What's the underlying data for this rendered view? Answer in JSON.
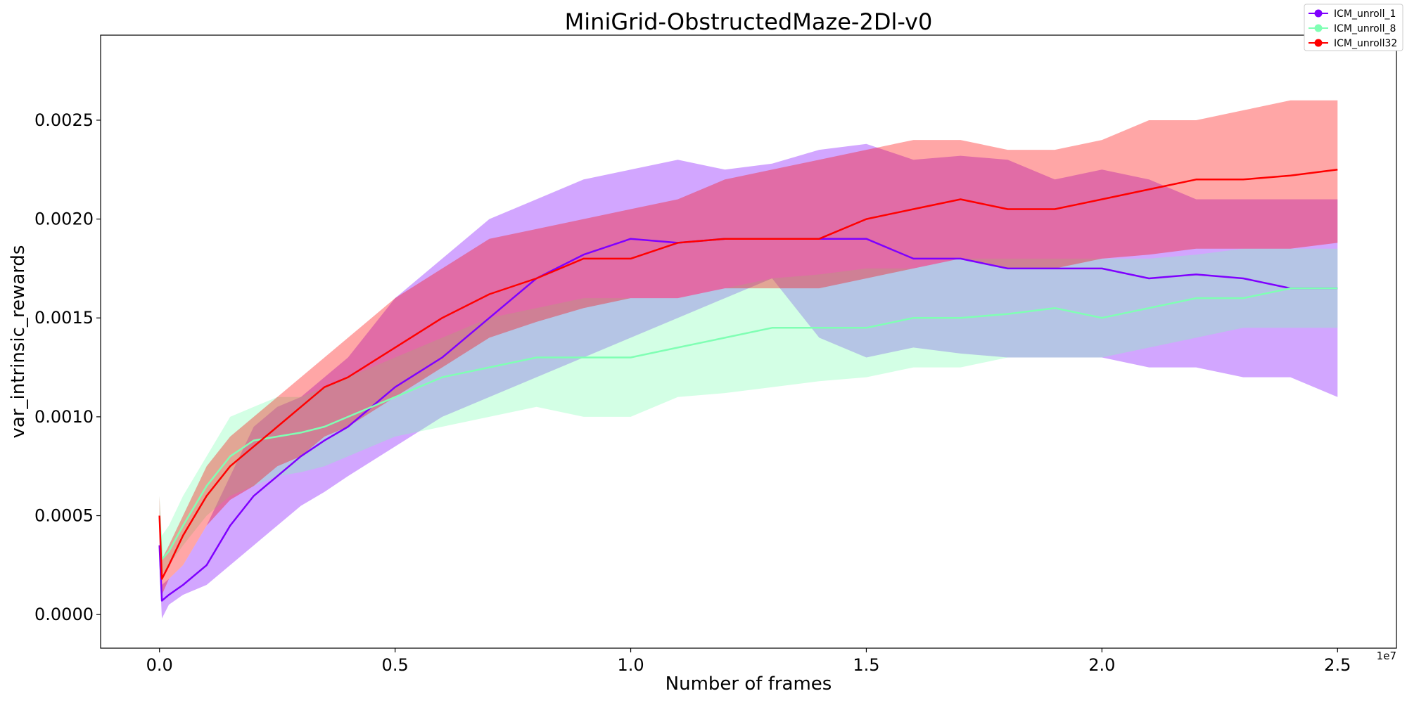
{
  "chart_data": {
    "type": "line",
    "title": "MiniGrid-ObstructedMaze-2Dl-v0",
    "xlabel": "Number of frames",
    "ylabel": "var_intrinsic_rewards",
    "x_scale_label": "1e7",
    "xlim": [
      -0.125,
      2.625
    ],
    "ylim": [
      -0.00017,
      0.00293
    ],
    "x_ticks": [
      0.0,
      0.5,
      1.0,
      1.5,
      2.0,
      2.5
    ],
    "x_tick_labels": [
      "0.0",
      "0.5",
      "1.0",
      "1.5",
      "2.0",
      "2.5"
    ],
    "y_ticks": [
      0.0,
      0.0005,
      0.001,
      0.0015,
      0.002,
      0.0025
    ],
    "y_tick_labels": [
      "0.0000",
      "0.0005",
      "0.0010",
      "0.0015",
      "0.0020",
      "0.0025"
    ],
    "grid": false,
    "legend_position": "top-right",
    "x": [
      0.0,
      0.005,
      0.02,
      0.05,
      0.1,
      0.15,
      0.2,
      0.25,
      0.3,
      0.35,
      0.4,
      0.5,
      0.6,
      0.7,
      0.8,
      0.9,
      1.0,
      1.1,
      1.2,
      1.3,
      1.4,
      1.5,
      1.6,
      1.7,
      1.8,
      1.9,
      2.0,
      2.1,
      2.2,
      2.3,
      2.4,
      2.5
    ],
    "series": [
      {
        "name": "ICM_unroll_1",
        "color": "#7f00ff",
        "values": [
          0.00035,
          7e-05,
          0.0001,
          0.00015,
          0.00025,
          0.00045,
          0.0006,
          0.0007,
          0.0008,
          0.00088,
          0.00095,
          0.00115,
          0.0013,
          0.0015,
          0.0017,
          0.00182,
          0.0019,
          0.00188,
          0.0019,
          0.0019,
          0.0019,
          0.0019,
          0.0018,
          0.0018,
          0.00175,
          0.00175,
          0.00175,
          0.0017,
          0.00172,
          0.0017,
          0.00165,
          0.00165
        ],
        "lower": [
          0.00025,
          -2e-05,
          5e-05,
          0.0001,
          0.00015,
          0.00025,
          0.00035,
          0.00045,
          0.00055,
          0.00062,
          0.0007,
          0.00085,
          0.001,
          0.0011,
          0.0012,
          0.0013,
          0.0014,
          0.0015,
          0.0016,
          0.0017,
          0.0014,
          0.0013,
          0.00135,
          0.00132,
          0.0013,
          0.0013,
          0.0013,
          0.00125,
          0.00125,
          0.0012,
          0.0012,
          0.0011
        ],
        "upper": [
          0.00045,
          0.00015,
          0.00018,
          0.00025,
          0.00045,
          0.0007,
          0.00095,
          0.00105,
          0.0011,
          0.0012,
          0.0013,
          0.0016,
          0.0018,
          0.002,
          0.0021,
          0.0022,
          0.00225,
          0.0023,
          0.00225,
          0.00228,
          0.00235,
          0.00238,
          0.0023,
          0.00232,
          0.0023,
          0.0022,
          0.00225,
          0.0022,
          0.0021,
          0.0021,
          0.0021,
          0.0021
        ]
      },
      {
        "name": "ICM_unroll_8",
        "color": "#80ffb4",
        "values": [
          0.0005,
          0.00028,
          0.00032,
          0.00045,
          0.00065,
          0.0008,
          0.00088,
          0.0009,
          0.00092,
          0.00095,
          0.001,
          0.0011,
          0.0012,
          0.00125,
          0.0013,
          0.0013,
          0.0013,
          0.00135,
          0.0014,
          0.00145,
          0.00145,
          0.00145,
          0.0015,
          0.0015,
          0.00152,
          0.00155,
          0.0015,
          0.00155,
          0.0016,
          0.0016,
          0.00165,
          0.00165
        ],
        "lower": [
          0.0004,
          0.0002,
          0.00025,
          0.00035,
          0.0005,
          0.0006,
          0.00065,
          0.0007,
          0.00072,
          0.00075,
          0.0008,
          0.0009,
          0.00095,
          0.001,
          0.00105,
          0.001,
          0.001,
          0.0011,
          0.00112,
          0.00115,
          0.00118,
          0.0012,
          0.00125,
          0.00125,
          0.0013,
          0.0013,
          0.0013,
          0.00135,
          0.0014,
          0.00145,
          0.00145,
          0.00145
        ],
        "upper": [
          0.0006,
          0.0004,
          0.00045,
          0.0006,
          0.0008,
          0.001,
          0.00105,
          0.0011,
          0.0011,
          0.00115,
          0.0012,
          0.0013,
          0.0014,
          0.0015,
          0.00155,
          0.0016,
          0.0016,
          0.0016,
          0.00165,
          0.0017,
          0.00172,
          0.00175,
          0.00175,
          0.0018,
          0.0018,
          0.0018,
          0.0018,
          0.0018,
          0.00182,
          0.00185,
          0.00185,
          0.00185
        ]
      },
      {
        "name": "ICM_unroll32",
        "color": "#ff0000",
        "values": [
          0.0005,
          0.00018,
          0.00025,
          0.0004,
          0.0006,
          0.00075,
          0.00085,
          0.00095,
          0.00105,
          0.00115,
          0.0012,
          0.00135,
          0.0015,
          0.00162,
          0.0017,
          0.0018,
          0.0018,
          0.00188,
          0.0019,
          0.0019,
          0.0019,
          0.002,
          0.00205,
          0.0021,
          0.00205,
          0.00205,
          0.0021,
          0.00215,
          0.0022,
          0.0022,
          0.00222,
          0.00225
        ],
        "lower": [
          0.0004,
          0.0001,
          0.00018,
          0.00025,
          0.00045,
          0.00058,
          0.00065,
          0.00075,
          0.0008,
          0.0009,
          0.00095,
          0.0011,
          0.00125,
          0.0014,
          0.00148,
          0.00155,
          0.0016,
          0.0016,
          0.00165,
          0.00165,
          0.00165,
          0.0017,
          0.00175,
          0.0018,
          0.00175,
          0.00175,
          0.0018,
          0.00182,
          0.00185,
          0.00185,
          0.00185,
          0.00188
        ],
        "upper": [
          0.0006,
          0.00028,
          0.00035,
          0.0005,
          0.00075,
          0.0009,
          0.001,
          0.0011,
          0.0012,
          0.0013,
          0.0014,
          0.0016,
          0.00175,
          0.0019,
          0.00195,
          0.002,
          0.00205,
          0.0021,
          0.0022,
          0.00225,
          0.0023,
          0.00235,
          0.0024,
          0.0024,
          0.00235,
          0.00235,
          0.0024,
          0.0025,
          0.0025,
          0.00255,
          0.0026,
          0.0026
        ]
      }
    ]
  }
}
